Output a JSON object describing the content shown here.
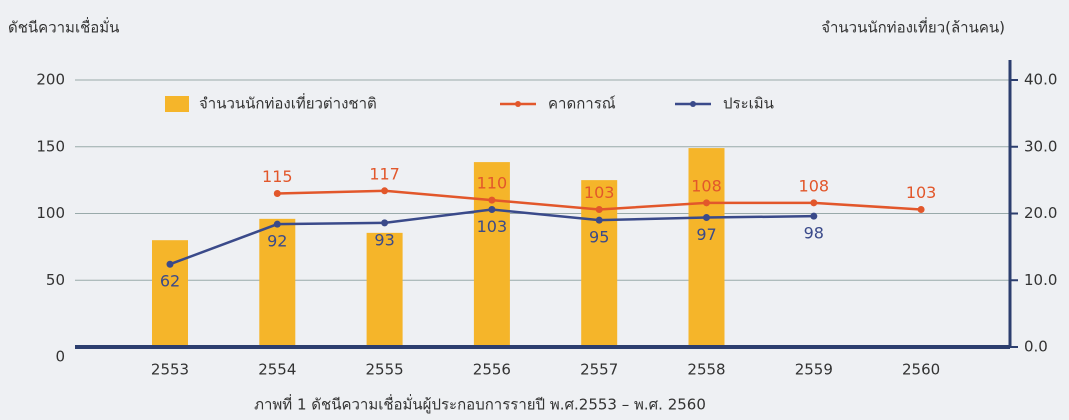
{
  "chart_data": {
    "type": "bar_line",
    "y_label": "ดัชนีความเชื่อมั่น",
    "y2_label": "จำนวนนักท่องเที่ยว(ล้านคน)",
    "caption": "ภาพที่ 1 ดัชนีความเชื่อมั่นผู้ประกอบการรายปี พ.ศ.2553 – พ.ศ. 2560",
    "categories": [
      "2553",
      "2554",
      "2555",
      "2556",
      "2557",
      "2558",
      "2559",
      "2560"
    ],
    "ylim": [
      0,
      200
    ],
    "yticks": [
      0,
      50,
      100,
      150,
      200
    ],
    "y2lim": [
      0,
      40
    ],
    "y2ticks": [
      {
        "value": 0,
        "label": "0.0"
      },
      {
        "value": 10,
        "label": "10.0"
      },
      {
        "value": 20,
        "label": "20.0"
      },
      {
        "value": 30,
        "label": "30.0"
      },
      {
        "value": 40,
        "label": "40.0"
      }
    ],
    "grid": true,
    "series": [
      {
        "name": "จำนวนนักท่องเที่ยวต่างชาติ",
        "type": "bar",
        "axis": "y2",
        "color": "#f5b52a",
        "values": [
          16.0,
          19.2,
          17.1,
          27.7,
          25.0,
          29.8,
          null,
          null
        ]
      },
      {
        "name": "คาดการณ์",
        "type": "line",
        "color": "#e2572b",
        "values": [
          null,
          115,
          117,
          110,
          103,
          108,
          108,
          103
        ]
      },
      {
        "name": "ประเมิน",
        "type": "line",
        "color": "#3a4a8a",
        "values": [
          62,
          92,
          93,
          103,
          95,
          97,
          98,
          null
        ]
      }
    ]
  }
}
